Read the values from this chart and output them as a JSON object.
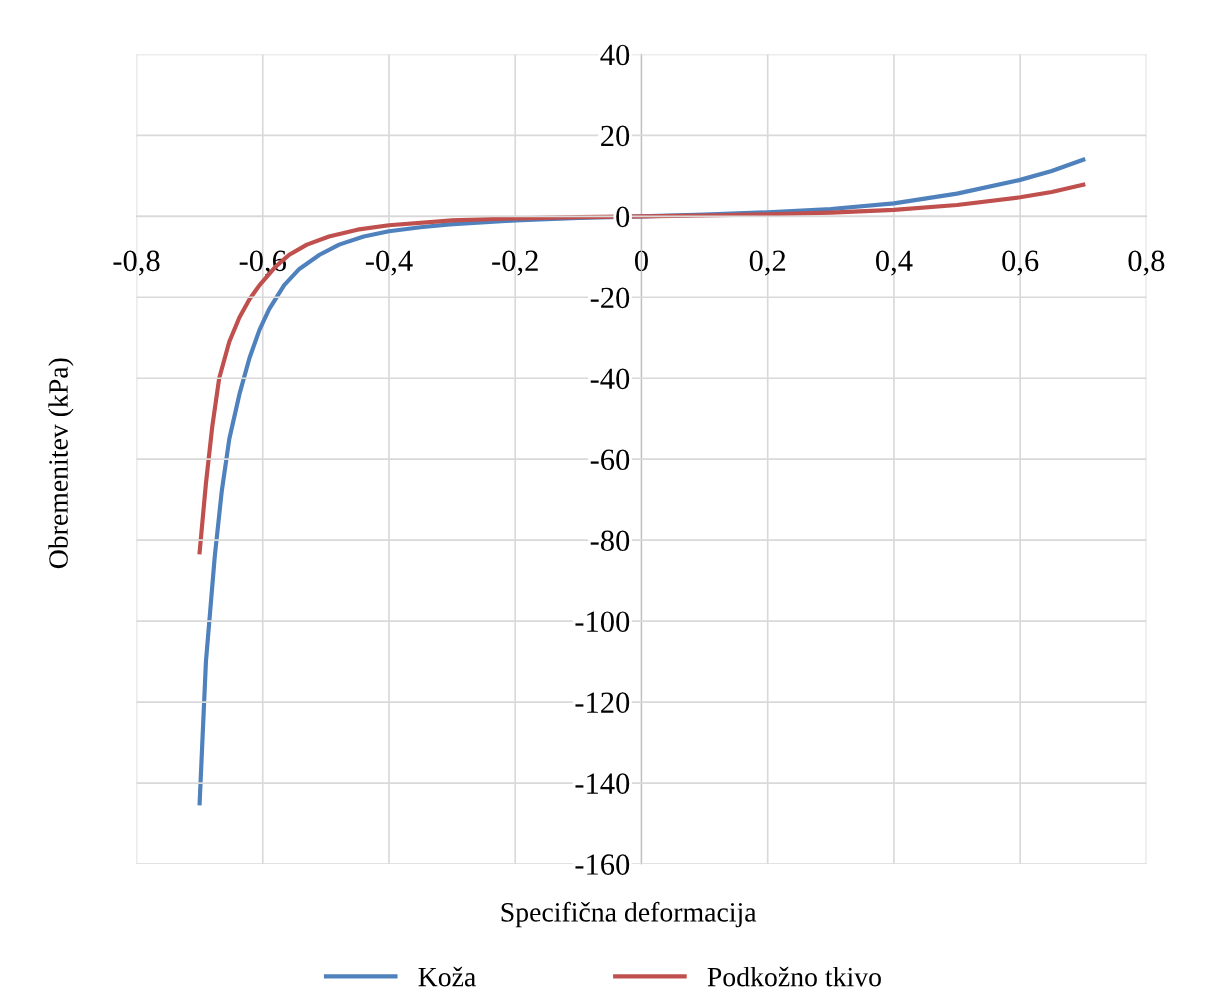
{
  "chart_data": {
    "type": "line",
    "xlabel": "Specifična deformacija",
    "ylabel": "Obremenitev (kPa)",
    "xlim": [
      -0.8,
      0.8
    ],
    "ylim": [
      -160,
      40
    ],
    "xticks": [
      {
        "value": -0.8,
        "label": "-0,8"
      },
      {
        "value": -0.6,
        "label": "-0,6"
      },
      {
        "value": -0.4,
        "label": "-0,4"
      },
      {
        "value": -0.2,
        "label": "-0,2"
      },
      {
        "value": 0,
        "label": "0"
      },
      {
        "value": 0.2,
        "label": "0,2"
      },
      {
        "value": 0.4,
        "label": "0,4"
      },
      {
        "value": 0.6,
        "label": "0,6"
      },
      {
        "value": 0.8,
        "label": "0,8"
      }
    ],
    "yticks": [
      -160,
      -140,
      -120,
      -100,
      -80,
      -60,
      -40,
      -20,
      0,
      20,
      40
    ],
    "grid": true,
    "legend": "bottom",
    "marker": "none",
    "line_style": "solid",
    "series": [
      {
        "name": "Koža",
        "color": "#4f81bd",
        "x": [
          -0.7,
          -0.69,
          -0.676,
          -0.665,
          -0.653,
          -0.637,
          -0.621,
          -0.605,
          -0.59,
          -0.566,
          -0.542,
          -0.51,
          -0.479,
          -0.44,
          -0.4,
          -0.35,
          -0.304,
          -0.2,
          -0.1,
          0,
          0.1,
          0.2,
          0.3,
          0.4,
          0.5,
          0.6,
          0.65,
          0.7
        ],
        "values": [
          -145,
          -110,
          -84,
          -68,
          -55,
          -44,
          -35,
          -28,
          -23,
          -17,
          -13,
          -9.5,
          -7,
          -5,
          -3.7,
          -2.7,
          -2,
          -1,
          -0.4,
          0,
          0.4,
          1,
          1.8,
          3.2,
          5.6,
          9,
          11.2,
          14
        ]
      },
      {
        "name": "Podkožno tkivo",
        "color": "#c0504d",
        "x": [
          -0.7,
          -0.69,
          -0.68,
          -0.669,
          -0.653,
          -0.637,
          -0.621,
          -0.605,
          -0.58,
          -0.558,
          -0.53,
          -0.495,
          -0.45,
          -0.4,
          -0.3,
          -0.2,
          -0.1,
          0,
          0.1,
          0.2,
          0.3,
          0.4,
          0.5,
          0.6,
          0.65,
          0.7
        ],
        "values": [
          -83,
          -66,
          -52,
          -40,
          -31,
          -25,
          -20.5,
          -17,
          -12.5,
          -9.5,
          -7,
          -5,
          -3.3,
          -2.2,
          -1,
          -0.5,
          -0.2,
          0,
          0.2,
          0.5,
          0.9,
          1.6,
          2.8,
          4.7,
          6,
          7.8
        ]
      }
    ]
  }
}
